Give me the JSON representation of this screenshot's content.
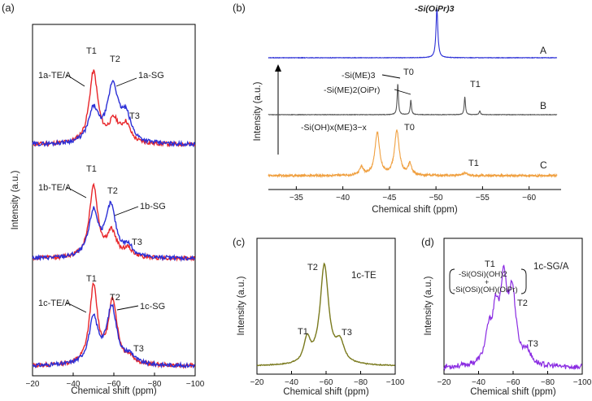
{
  "chart_data": [
    {
      "panel": "a",
      "panel_label": "(a)",
      "type": "line",
      "xlabel": "Chemical shift (ppm)",
      "ylabel": "Intensity (a.u.)",
      "xlim": [
        -20,
        -100
      ],
      "xticks": [
        -20,
        -40,
        -60,
        -80,
        -100
      ],
      "xtick_labels": [
        "−20",
        "−40",
        "−60",
        "−80",
        "−100"
      ],
      "colors": {
        "TE": "#e8262a",
        "SG": "#2b2fd6"
      },
      "stacks": [
        {
          "name": "1a",
          "labels": {
            "te": "1a-TE/A",
            "sg": "1a-SG",
            "t1": "T1",
            "t2": "T2",
            "t3": "T3"
          },
          "peaks_te": [
            {
              "x": -50,
              "h": 0.88,
              "w": 2.6
            },
            {
              "x": -60,
              "h": 0.26,
              "w": 3.0
            },
            {
              "x": -66,
              "h": 0.22,
              "w": 2.6
            }
          ],
          "peaks_sg": [
            {
              "x": -50,
              "h": 0.4,
              "w": 3.0
            },
            {
              "x": -59.5,
              "h": 0.7,
              "w": 3.2
            },
            {
              "x": -66,
              "h": 0.3,
              "w": 3.0
            }
          ]
        },
        {
          "name": "1b",
          "labels": {
            "te": "1b-TE/A",
            "sg": "1b-SG",
            "t1": "T1",
            "t2": "T2",
            "t3": "T3"
          },
          "peaks_te": [
            {
              "x": -50,
              "h": 0.88,
              "w": 2.5
            },
            {
              "x": -59,
              "h": 0.3,
              "w": 2.8
            },
            {
              "x": -67,
              "h": 0.1,
              "w": 2.5
            }
          ],
          "peaks_sg": [
            {
              "x": -50,
              "h": 0.55,
              "w": 2.8
            },
            {
              "x": -58.5,
              "h": 0.62,
              "w": 3.0
            },
            {
              "x": -67,
              "h": 0.12,
              "w": 2.8
            }
          ]
        },
        {
          "name": "1c",
          "labels": {
            "te": "1c-TE/A",
            "sg": "1c-SG",
            "t1": "T1",
            "t2": "T2",
            "t3": "T3"
          },
          "peaks_te": [
            {
              "x": -50,
              "h": 0.95,
              "w": 2.4
            },
            {
              "x": -59.5,
              "h": 0.78,
              "w": 2.6
            },
            {
              "x": -68,
              "h": 0.08,
              "w": 2.5
            }
          ],
          "peaks_sg": [
            {
              "x": -50,
              "h": 0.55,
              "w": 2.8
            },
            {
              "x": -59,
              "h": 0.7,
              "w": 3.0
            },
            {
              "x": -68,
              "h": 0.1,
              "w": 2.8
            }
          ]
        }
      ]
    },
    {
      "panel": "b",
      "panel_label": "(b)",
      "type": "line",
      "xlabel": "Chemical shift (ppm)",
      "ylabel": "Intensity (a.u.)",
      "xlim": [
        -32,
        -63
      ],
      "xticks": [
        -35,
        -40,
        -45,
        -50,
        -55,
        -60
      ],
      "xtick_labels": [
        "−35",
        "−40",
        "−45",
        "−50",
        "−55",
        "−60"
      ],
      "series": [
        {
          "name": "A",
          "color": "#2b2fd6",
          "peaks": [
            {
              "x": -50.1,
              "h": 1.0,
              "w": 0.12
            }
          ]
        },
        {
          "name": "B",
          "color": "#555555",
          "peaks": [
            {
              "x": -45.9,
              "h": 0.95,
              "w": 0.08
            },
            {
              "x": -47.3,
              "h": 0.45,
              "w": 0.08
            },
            {
              "x": -53.1,
              "h": 0.55,
              "w": 0.08
            },
            {
              "x": -54.7,
              "h": 0.12,
              "w": 0.08
            }
          ]
        },
        {
          "name": "C",
          "color": "#f0a040",
          "peaks": [
            {
              "x": -42.0,
              "h": 0.18,
              "w": 0.25
            },
            {
              "x": -43.7,
              "h": 0.95,
              "w": 0.3
            },
            {
              "x": -45.8,
              "h": 1.0,
              "w": 0.3
            },
            {
              "x": -47.2,
              "h": 0.25,
              "w": 0.22
            },
            {
              "x": -53.1,
              "h": 0.06,
              "w": 0.3
            }
          ]
        }
      ],
      "labels": {
        "top": "-Si(OiPr)3",
        "me3": "-Si(ME)3",
        "me2": "-Si(ME)2(OiPr)",
        "ohme": "-Si(OH)x(ME)3−x",
        "t0b": "T0",
        "t1b": "T1",
        "t0c": "T0",
        "t1c": "T1"
      }
    },
    {
      "panel": "c",
      "panel_label": "(c)",
      "type": "line",
      "title": "1c-TE",
      "xlabel": "Chemical shift (ppm)",
      "ylabel": "Intensity (a.u.)",
      "xlim": [
        -20,
        -100
      ],
      "xticks": [
        -20,
        -40,
        -60,
        -80,
        -100
      ],
      "xtick_labels": [
        "−20",
        "−40",
        "−60",
        "−80",
        "−100"
      ],
      "color": "#7a7a1e",
      "peaks": [
        {
          "x": -49,
          "h": 0.24,
          "w": 2.2
        },
        {
          "x": -59,
          "h": 1.0,
          "w": 3.0
        },
        {
          "x": -68,
          "h": 0.2,
          "w": 3.0
        }
      ],
      "labels": {
        "t1": "T1",
        "t2": "T2",
        "t3": "T3"
      }
    },
    {
      "panel": "d",
      "panel_label": "(d)",
      "type": "line",
      "title": "1c-SG/A",
      "xlabel": "Chemical shift (ppm)",
      "ylabel": "Intensity (a.u.)",
      "xlim": [
        -20,
        -100
      ],
      "xticks": [
        -20,
        -40,
        -60,
        -80,
        -100
      ],
      "xtick_labels": [
        "−20",
        "−40",
        "−60",
        "−80",
        "−100"
      ],
      "color": "#8a2be2",
      "peaks": [
        {
          "x": -46,
          "h": 0.35,
          "w": 2.5
        },
        {
          "x": -50,
          "h": 0.5,
          "w": 2.0
        },
        {
          "x": -54.5,
          "h": 0.86,
          "w": 2.2
        },
        {
          "x": -59.5,
          "h": 0.78,
          "w": 2.6
        },
        {
          "x": -68,
          "h": 0.14,
          "w": 2.5
        }
      ],
      "labels": {
        "t1": "T1",
        "t1a": "-Si(OSi)(OH)2",
        "plus": "+",
        "t1b": "-Si(OSi)(OH)(OiPr)",
        "t2": "T2",
        "t3": "T3"
      }
    }
  ]
}
